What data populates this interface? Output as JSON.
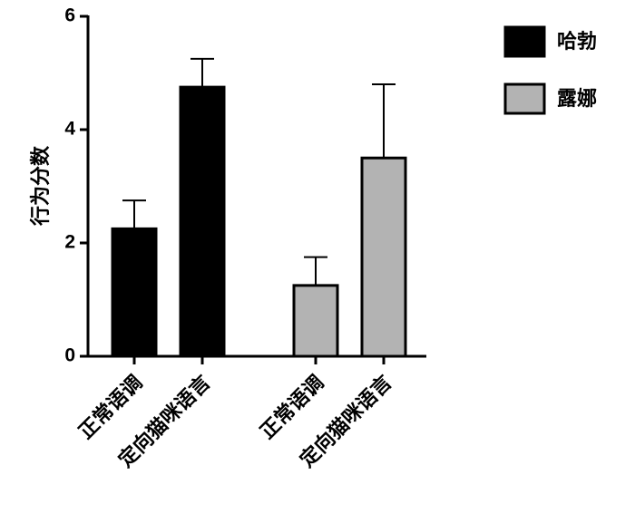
{
  "chart_data": {
    "type": "bar",
    "ylabel": "行为分数",
    "categories": [
      "正常语调",
      "定向猫咪语言"
    ],
    "series": [
      {
        "name": "哈勃",
        "color": "#000000",
        "values": [
          2.25,
          4.75
        ],
        "errors": [
          0.5,
          0.5
        ]
      },
      {
        "name": "露娜",
        "color": "#b3b3b3",
        "values": [
          1.25,
          3.5
        ],
        "errors": [
          0.5,
          1.3
        ]
      }
    ],
    "ylim": [
      0,
      6
    ],
    "yticks": [
      0,
      2,
      4,
      6
    ],
    "legend": "right"
  }
}
